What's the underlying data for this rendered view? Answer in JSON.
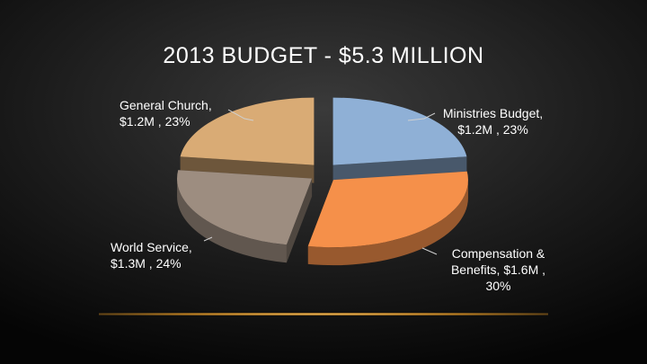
{
  "slide": {
    "title": "2013 BUDGET - $5.3 MILLION"
  },
  "chart_data": {
    "type": "pie",
    "title": "2013 BUDGET - $5.3 MILLION",
    "three_d": true,
    "exploded": true,
    "slices": [
      {
        "name": "Ministries Budget",
        "amount_label": "$1.2M",
        "percent": 23,
        "color": "#8fb0d6"
      },
      {
        "name": "Compensation & Benefits",
        "amount_label": "$1.6M",
        "percent": 30,
        "color": "#f5904a"
      },
      {
        "name": "World Service",
        "amount_label": "$1.3M",
        "percent": 24,
        "color": "#9d8d80"
      },
      {
        "name": "General Church",
        "amount_label": "$1.2M",
        "percent": 23,
        "color": "#d9ab75"
      }
    ],
    "labels": {
      "general": {
        "line1": "General Church,",
        "line2": "$1.2M , 23%"
      },
      "ministries": {
        "line1": "Ministries Budget,",
        "line2": "$1.2M , 23%"
      },
      "world": {
        "line1": "World Service,",
        "line2": "$1.3M , 24%"
      },
      "compensation": {
        "line1": "Compensation &",
        "line2": "Benefits,  $1.6M ,",
        "line3": "30%"
      }
    }
  }
}
